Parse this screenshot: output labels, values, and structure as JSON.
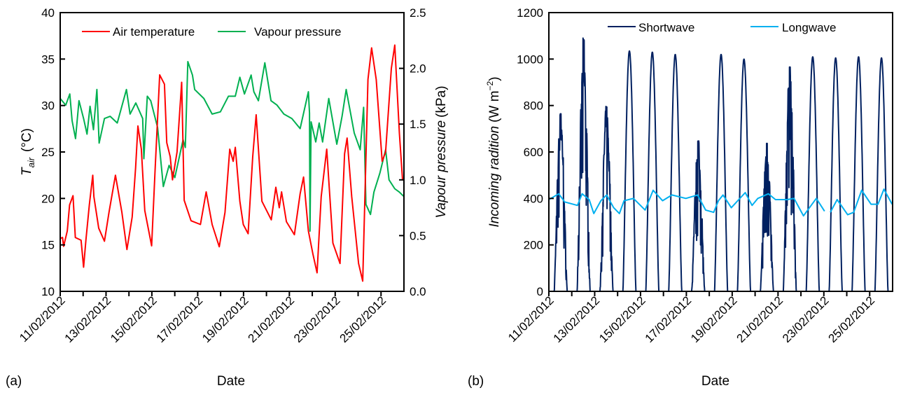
{
  "chart_data": [
    {
      "panel_label": "(a)",
      "type": "line",
      "xlabel": "Date",
      "x_units": "days since 11/02/2012 00:00",
      "xlim": [
        0,
        15
      ],
      "x_tick_labels": [
        "11/02/2012",
        "13/02/2012",
        "15/02/2012",
        "17/02/2012",
        "19/02/2012",
        "21/02/2012",
        "23/02/2012",
        "25/02/2012"
      ],
      "x_tick_every_day": true,
      "ylabel": {
        "symbol": "T",
        "sub": "air",
        "unit": "(°C)"
      },
      "ylim": [
        10,
        40
      ],
      "y_ticks": [
        10,
        15,
        20,
        25,
        30,
        35,
        40
      ],
      "y2label": {
        "italic": "Vapour pressure",
        "unit": "(kPa)"
      },
      "y2lim": [
        0,
        2.5
      ],
      "y2_ticks": [
        "0.0",
        "0.5",
        "1.0",
        "1.5",
        "2.0",
        "2.5"
      ],
      "legend_position": "top",
      "series": [
        {
          "name": "Air temperature",
          "axis": "left",
          "color": "#ff0000",
          "x": [
            0,
            0.1,
            0.15,
            0.31,
            0.41,
            0.56,
            0.66,
            0.91,
            1.02,
            1.12,
            1.27,
            1.42,
            1.47,
            1.68,
            1.93,
            2.13,
            2.41,
            2.69,
            2.91,
            3.14,
            3.29,
            3.39,
            3.54,
            3.69,
            3.99,
            4.14,
            4.34,
            4.55,
            4.65,
            4.8,
            4.9,
            5.1,
            5.3,
            5.41,
            5.71,
            6.12,
            6.37,
            6.63,
            6.94,
            7.19,
            7.4,
            7.55,
            7.64,
            7.84,
            7.99,
            8.2,
            8.4,
            8.55,
            8.8,
            9.21,
            9.41,
            9.56,
            9.66,
            9.87,
            10.22,
            10.47,
            10.62,
            10.83,
            11.03,
            11.21,
            11.39,
            11.63,
            11.9,
            12.21,
            12.41,
            12.52,
            12.72,
            13.02,
            13.2,
            13.43,
            13.59,
            13.79,
            14.05,
            14.2,
            14.45,
            14.6,
            14.8,
            14.94,
            15
          ],
          "y": [
            15.7,
            15.8,
            14.85,
            16.5,
            19.3,
            20.3,
            15.8,
            15.5,
            12.6,
            15.5,
            19.3,
            22.5,
            20.2,
            16.8,
            15.4,
            18.5,
            22.5,
            18.5,
            14.5,
            18,
            23.3,
            27.8,
            25.3,
            18.7,
            14.9,
            23,
            33.3,
            32.3,
            26,
            24.5,
            22,
            25,
            32.5,
            19.8,
            17.6,
            17.2,
            20.7,
            17.2,
            14.8,
            18.5,
            25.3,
            24,
            25.5,
            19.7,
            17.2,
            16.2,
            24.5,
            29,
            19.7,
            17.7,
            21.2,
            19,
            20.7,
            17.5,
            16.1,
            20.5,
            22.3,
            16.5,
            14,
            12,
            20.2,
            25.3,
            15.2,
            13,
            24.8,
            26.5,
            20.2,
            13,
            11.1,
            32.8,
            36.2,
            32.8,
            24,
            25,
            34,
            36.5,
            27,
            22,
            22
          ]
        },
        {
          "name": "Vapour pressure",
          "axis": "right",
          "color": "#00b050",
          "x": [
            0,
            0.24,
            0.42,
            0.52,
            0.67,
            0.82,
            1.02,
            1.17,
            1.3,
            1.45,
            1.6,
            1.7,
            1.93,
            2.18,
            2.49,
            2.89,
            3.05,
            3.3,
            3.6,
            3.65,
            3.8,
            3.95,
            4.25,
            4.5,
            4.75,
            5.0,
            5.36,
            5.46,
            5.57,
            5.77,
            5.87,
            6.27,
            6.63,
            6.99,
            7.34,
            7.64,
            7.84,
            8.04,
            8.33,
            8.45,
            8.65,
            8.93,
            9.2,
            9.46,
            9.76,
            10.11,
            10.47,
            10.83,
            10.88,
            10.9,
            10.95,
            11.15,
            11.3,
            11.45,
            11.72,
            12.07,
            12.3,
            12.48,
            12.83,
            13.09,
            13.24,
            13.34,
            13.54,
            13.69,
            13.95,
            14.2,
            14.35,
            14.6,
            14.8,
            15
          ],
          "y": [
            1.73,
            1.67,
            1.77,
            1.53,
            1.37,
            1.71,
            1.55,
            1.41,
            1.66,
            1.45,
            1.81,
            1.33,
            1.55,
            1.57,
            1.51,
            1.81,
            1.59,
            1.69,
            1.55,
            1.19,
            1.75,
            1.71,
            1.47,
            0.94,
            1.13,
            1.02,
            1.36,
            1.29,
            2.06,
            1.94,
            1.81,
            1.73,
            1.59,
            1.61,
            1.75,
            1.75,
            1.92,
            1.77,
            1.94,
            1.79,
            1.71,
            2.05,
            1.71,
            1.67,
            1.59,
            1.55,
            1.46,
            1.79,
            1.6,
            0.54,
            1.52,
            1.34,
            1.51,
            1.34,
            1.73,
            1.32,
            1.57,
            1.81,
            1.42,
            1.27,
            1.65,
            0.78,
            0.69,
            0.89,
            1.06,
            1.27,
            1.0,
            0.92,
            0.89,
            0.85
          ]
        }
      ]
    },
    {
      "panel_label": "(b)",
      "type": "line",
      "xlabel": "Date",
      "x_units": "days since 11/02/2012 00:00",
      "xlim": [
        0,
        15
      ],
      "x_tick_labels": [
        "11/02/2012",
        "13/02/2012",
        "15/02/2012",
        "17/02/2012",
        "19/02/2012",
        "21/02/2012",
        "23/02/2012",
        "25/02/2012"
      ],
      "ylabel": {
        "italic": "Incoming radition",
        "unit_pre": "(W m",
        "unit_sup": "−2",
        "unit_post": ")"
      },
      "ylim": [
        0,
        1200
      ],
      "y_ticks": [
        0,
        200,
        400,
        600,
        800,
        1000,
        1200
      ],
      "legend_position": "top",
      "series": [
        {
          "name": "Shortwave",
          "color": "#002060",
          "daily_peak": [
            780,
            1105,
            810,
            1035,
            1030,
            1020,
            660,
            1020,
            1000,
            650,
            985,
            1010,
            1005,
            1010,
            1005
          ],
          "variable_days": [
            0,
            1,
            2,
            6,
            9,
            10
          ],
          "sunrise_fraction": 0.23,
          "sunset_fraction": 0.8
        },
        {
          "name": "Longwave",
          "color": "#00b0f0",
          "x": [
            0,
            0.43,
            0.69,
            1.25,
            1.45,
            1.76,
            1.96,
            2.27,
            2.52,
            2.83,
            3.08,
            3.28,
            3.69,
            4.2,
            4.55,
            4.96,
            5.37,
            5.98,
            6.49,
            6.84,
            7.19,
            7.4,
            7.6,
            7.96,
            8.57,
            8.87,
            9.12,
            9.58,
            9.89,
            10.4,
            10.7,
            11.11,
            11.67,
            12.03,
            12.1,
            12.28,
            12.58,
            13.04,
            13.3,
            13.65,
            14.06,
            14.36,
            14.62,
            14.98
          ],
          "y": [
            395,
            420,
            385,
            370,
            420,
            395,
            335,
            390,
            415,
            360,
            335,
            390,
            400,
            350,
            435,
            390,
            415,
            400,
            415,
            350,
            340,
            390,
            415,
            360,
            425,
            370,
            400,
            420,
            395,
            395,
            400,
            325,
            400,
            345,
            null,
            340,
            395,
            330,
            340,
            435,
            375,
            375,
            440,
            375
          ]
        }
      ]
    }
  ]
}
